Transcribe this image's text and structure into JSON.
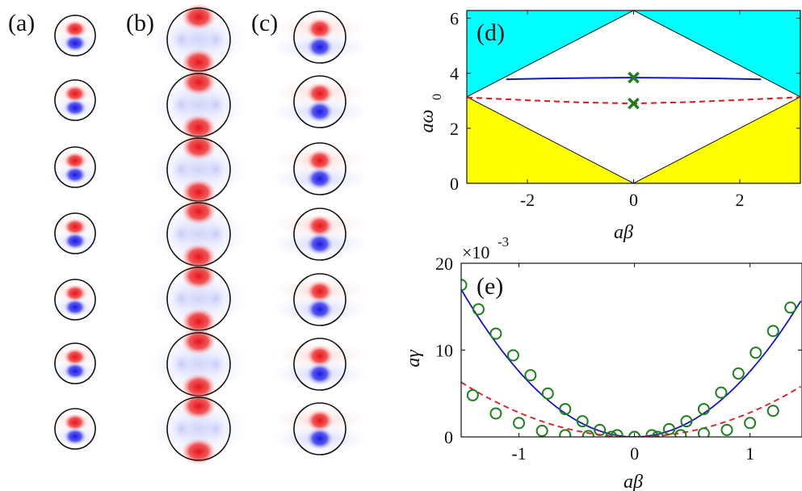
{
  "panels": {
    "a": {
      "label": "(a)",
      "n_circles": 7,
      "circle_size": "small"
    },
    "b": {
      "label": "(b)",
      "n_circles": 7,
      "circle_size": "large"
    },
    "c": {
      "label": "(c)",
      "n_circles": 7,
      "circle_size": "medium"
    }
  },
  "colors": {
    "field_positive": "#e8141b",
    "field_negative": "#1a1ae0",
    "light_cone_upper": "#00ffff",
    "light_cone_lower": "#ffff00",
    "solid_curve": "#1515c8",
    "dashed_curve": "#e8141b",
    "markers": "#1a7f1a"
  },
  "chart_data": [
    {
      "id": "d",
      "type": "line",
      "panel_label": "(d)",
      "xlabel": "aβ",
      "ylabel": "aω",
      "ylabel_subscript": "0",
      "xlim": [
        -3.14159,
        3.14159
      ],
      "ylim": [
        0,
        6.28
      ],
      "xticks": [
        -2,
        0,
        2
      ],
      "yticks": [
        0,
        2,
        4,
        6
      ],
      "xtick_labels": [
        "-2",
        "0",
        "2"
      ],
      "ytick_labels": [
        "0",
        "2",
        "4",
        "6"
      ],
      "regions": [
        {
          "fill": "cyan",
          "description_shape": "above light lines |β| and 2π-|β|"
        },
        {
          "fill": "yellow",
          "description_shape": "below light lines"
        }
      ],
      "series": [
        {
          "style": "solid",
          "color": "blue",
          "x": [
            -2.4,
            -1.6,
            -0.8,
            0,
            0.8,
            1.6,
            2.4
          ],
          "y": [
            3.78,
            3.81,
            3.83,
            3.84,
            3.83,
            3.81,
            3.78
          ]
        },
        {
          "style": "dashed",
          "color": "red",
          "x": [
            -3.14,
            -2,
            -1,
            0,
            1,
            2,
            3.14
          ],
          "y": [
            3.12,
            3.02,
            2.94,
            2.9,
            2.95,
            3.03,
            3.13
          ]
        }
      ],
      "markers": [
        {
          "x": 0,
          "y": 3.84,
          "symbol": "x"
        },
        {
          "x": 0,
          "y": 2.9,
          "symbol": "x"
        }
      ]
    },
    {
      "id": "e",
      "type": "line",
      "panel_label": "(e)",
      "xlabel": "aβ",
      "ylabel": "aγ",
      "scale_label": "×10",
      "scale_exponent": "-3",
      "xlim": [
        -1.5,
        1.45
      ],
      "ylim": [
        0,
        20
      ],
      "xticks": [
        -1,
        0,
        1
      ],
      "yticks": [
        0,
        10,
        20
      ],
      "xtick_labels": [
        "-1",
        "0",
        "1"
      ],
      "ytick_labels": [
        "0",
        "10",
        "20"
      ],
      "series": [
        {
          "style": "solid",
          "color": "blue",
          "curve": {
            "a": 7.55,
            "x0": 0.0,
            "y0": 0.0
          },
          "points_x": [
            -1.5,
            -1.35,
            -1.2,
            -1.05,
            -0.9,
            -0.75,
            -0.6,
            -0.45,
            -0.3,
            -0.15,
            0,
            0.15,
            0.3,
            0.45,
            0.6,
            0.75,
            0.9,
            1.05,
            1.2,
            1.35
          ],
          "points_y": [
            17.5,
            14.7,
            11.9,
            9.4,
            7.1,
            5.0,
            3.2,
            1.8,
            0.8,
            0.2,
            0.0,
            0.2,
            0.9,
            1.8,
            3.2,
            5.1,
            7.3,
            9.7,
            12.2,
            14.9
          ]
        },
        {
          "style": "dashed",
          "color": "red",
          "curve": {
            "a": 2.8,
            "x0": 0.0,
            "y0": 0.0
          },
          "points_x": [
            -1.4,
            -1.2,
            -1.0,
            -0.8,
            -0.6,
            -0.4,
            -0.2,
            0.0,
            0.2,
            0.4,
            0.6,
            0.8,
            1.0,
            1.2
          ],
          "points_y": [
            4.8,
            2.7,
            1.6,
            0.7,
            0.2,
            0.1,
            0.0,
            0.0,
            0.0,
            0.2,
            0.4,
            0.8,
            1.6,
            3.0
          ]
        }
      ]
    }
  ]
}
